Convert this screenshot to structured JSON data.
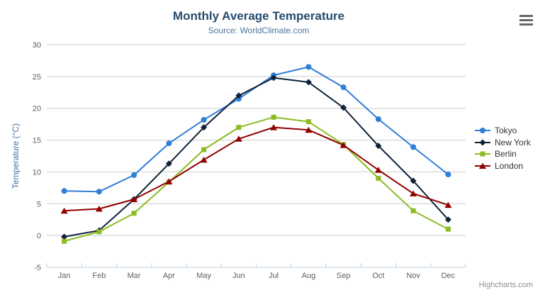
{
  "chart_data": {
    "type": "line",
    "title": "Monthly Average Temperature",
    "subtitle": "Source: WorldClimate.com",
    "xlabel": "",
    "ylabel": "Temperature (°C)",
    "ylim": [
      -5,
      30
    ],
    "ytick_step": 5,
    "grid": true,
    "legend_position": "right",
    "categories": [
      "Jan",
      "Feb",
      "Mar",
      "Apr",
      "May",
      "Jun",
      "Jul",
      "Aug",
      "Sep",
      "Oct",
      "Nov",
      "Dec"
    ],
    "series": [
      {
        "name": "Tokyo",
        "color": "#2f7ed8",
        "marker": "circle",
        "values": [
          7.0,
          6.9,
          9.5,
          14.5,
          18.2,
          21.5,
          25.2,
          26.5,
          23.3,
          18.3,
          13.9,
          9.6
        ]
      },
      {
        "name": "New York",
        "color": "#0d233a",
        "marker": "diamond",
        "values": [
          -0.2,
          0.8,
          5.7,
          11.3,
          17.0,
          22.0,
          24.8,
          24.1,
          20.1,
          14.1,
          8.6,
          2.5
        ]
      },
      {
        "name": "Berlin",
        "color": "#8bbc21",
        "marker": "square",
        "values": [
          -0.9,
          0.6,
          3.5,
          8.4,
          13.5,
          17.0,
          18.6,
          17.9,
          14.3,
          9.0,
          3.9,
          1.0
        ]
      },
      {
        "name": "London",
        "color": "#910000",
        "marker": "triangle",
        "values": [
          3.9,
          4.2,
          5.7,
          8.5,
          11.9,
          15.2,
          17.0,
          16.6,
          14.2,
          10.3,
          6.6,
          4.8
        ]
      }
    ]
  },
  "credits": {
    "label": "Highcharts.com"
  },
  "style": {
    "title_color": "#274b6d",
    "subtitle_color": "#4d759e",
    "grid_color": "#cccccc",
    "axis_line_color": "#c0d0e0",
    "axis_label_color": "#606060",
    "y_title_color": "#4572a7",
    "legend_text_color": "#333333",
    "credits_color": "#909090",
    "menu_icon_color": "#666666",
    "background": "#ffffff"
  }
}
